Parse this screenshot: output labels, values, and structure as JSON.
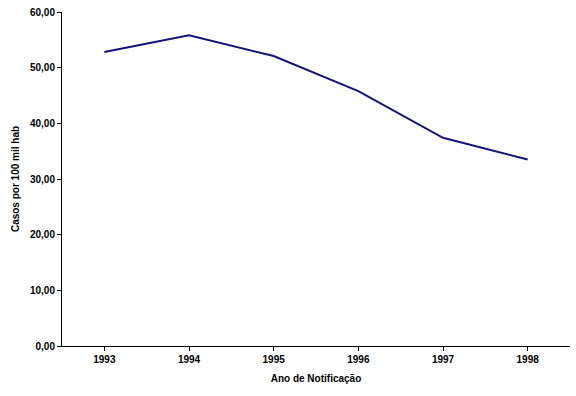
{
  "chart_data": {
    "type": "line",
    "x_label": "Ano de Notificação",
    "y_label": "Casos por 100 mil hab",
    "categories": [
      "1993",
      "1994",
      "1995",
      "1996",
      "1997",
      "1998"
    ],
    "values": [
      52.8,
      55.8,
      52.1,
      45.8,
      37.4,
      33.5
    ],
    "color": "#141478",
    "ylim": [
      0,
      60
    ],
    "yticks": [
      {
        "value": 0,
        "label": "0,00"
      },
      {
        "value": 10,
        "label": "10,00"
      },
      {
        "value": 20,
        "label": "20,00"
      },
      {
        "value": 30,
        "label": "30,00"
      },
      {
        "value": 40,
        "label": "40,00"
      },
      {
        "value": 50,
        "label": "50,00"
      },
      {
        "value": 60,
        "label": "60,00"
      }
    ],
    "grid": false
  }
}
